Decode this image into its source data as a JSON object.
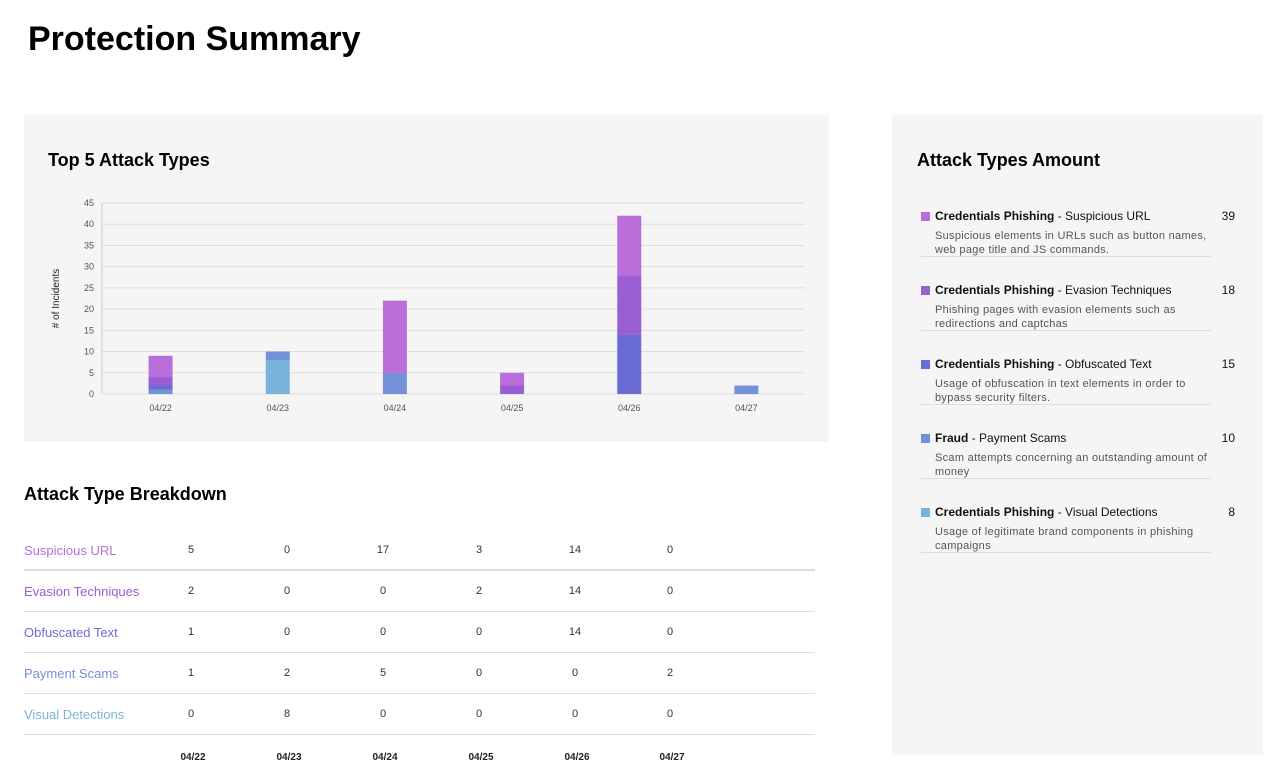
{
  "page": {
    "title": "Protection Summary"
  },
  "chart": {
    "title": "Top 5 Attack Types",
    "chart_data": {
      "type": "bar",
      "stacked": true,
      "ylabel": "# of Incidents",
      "xlabel": "",
      "ylim": [
        0,
        45
      ],
      "yticks": [
        0,
        5,
        10,
        15,
        20,
        25,
        30,
        35,
        40,
        45
      ],
      "grid": true,
      "categories": [
        "04/22",
        "04/23",
        "04/24",
        "04/25",
        "04/26",
        "04/27"
      ],
      "series": [
        {
          "values": [
            0,
            8,
            0,
            0,
            0,
            0
          ],
          "color": "#7ab3d9"
        },
        {
          "values": [
            1,
            2,
            5,
            0,
            0,
            2
          ],
          "color": "#7391d9"
        },
        {
          "values": [
            1,
            0,
            0,
            0,
            14,
            0
          ],
          "color": "#6b6bd6"
        },
        {
          "values": [
            2,
            0,
            0,
            2,
            14,
            0
          ],
          "color": "#9a5ed3"
        },
        {
          "values": [
            5,
            0,
            17,
            3,
            14,
            0
          ],
          "color": "#b96ed9"
        }
      ]
    }
  },
  "amounts": {
    "title": "Attack Types Amount",
    "items": [
      {
        "category": "Credentials Phishing",
        "type": "Suspicious URL",
        "count": "39",
        "color": "#b96ed9",
        "desc": "Suspicious elements in URLs such as button names, web page title and JS commands."
      },
      {
        "category": "Credentials Phishing",
        "type": "Evasion Techniques",
        "count": "18",
        "color": "#9a5ed3",
        "desc": "Phishing pages with evasion elements such as redirections and captchas"
      },
      {
        "category": "Credentials Phishing",
        "type": "Obfuscated Text",
        "count": "15",
        "color": "#6b6bd6",
        "desc": "Usage of obfuscation in text elements in order to bypass security filters."
      },
      {
        "category": "Fraud",
        "type": "Payment Scams",
        "count": "10",
        "color": "#7391d9",
        "desc": "Scam attempts concerning an outstanding amount of money"
      },
      {
        "category": "Credentials Phishing",
        "type": "Visual Detections",
        "count": "8",
        "color": "#7ab3d9",
        "desc": "Usage of legitimate brand components in phishing campaigns"
      }
    ]
  },
  "breakdown": {
    "title": "Attack Type Breakdown",
    "dates": [
      "04/22",
      "04/23",
      "04/24",
      "04/25",
      "04/26",
      "04/27"
    ],
    "rows": [
      {
        "label": "Suspicious URL",
        "color": "#b96ed9",
        "values": [
          "5",
          "0",
          "17",
          "3",
          "14",
          "0"
        ]
      },
      {
        "label": "Evasion Techniques",
        "color": "#9a5ed3",
        "values": [
          "2",
          "0",
          "0",
          "2",
          "14",
          "0"
        ]
      },
      {
        "label": "Obfuscated Text",
        "color": "#6b6bd6",
        "values": [
          "1",
          "0",
          "0",
          "0",
          "14",
          "0"
        ]
      },
      {
        "label": "Payment Scams",
        "color": "#7391d9",
        "values": [
          "1",
          "2",
          "5",
          "0",
          "0",
          "2"
        ]
      },
      {
        "label": "Visual Detections",
        "color": "#7ab3d9",
        "values": [
          "0",
          "8",
          "0",
          "0",
          "0",
          "0"
        ]
      }
    ]
  }
}
